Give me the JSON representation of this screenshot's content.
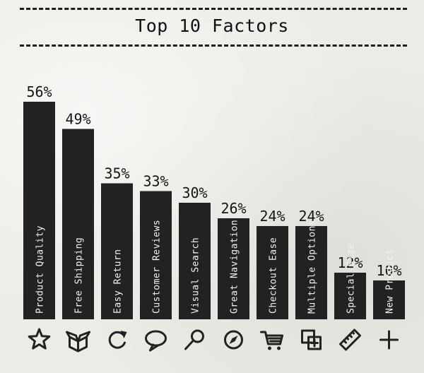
{
  "chart_data": {
    "type": "bar",
    "title": "Top 10 Factors",
    "categories": [
      "Product Quality",
      "Free Shipping",
      "Easy Return",
      "Customer Reviews",
      "Visual Search",
      "Great Navigation",
      "Checkout Ease",
      "Multiple Options",
      "Special Size",
      "New Product"
    ],
    "values": [
      56,
      49,
      35,
      33,
      30,
      26,
      24,
      24,
      12,
      10
    ],
    "value_suffix": "%",
    "ylim": [
      0,
      60
    ],
    "grid": false,
    "legend": "none",
    "icons": [
      "star-icon",
      "box-icon",
      "refresh-icon",
      "speech-bubble-icon",
      "search-icon",
      "compass-icon",
      "cart-icon",
      "add-layers-icon",
      "ruler-icon",
      "plus-icon"
    ],
    "colors": {
      "bar": "#222222",
      "label": "#f2f2f2",
      "background": "#ecebe6"
    }
  }
}
